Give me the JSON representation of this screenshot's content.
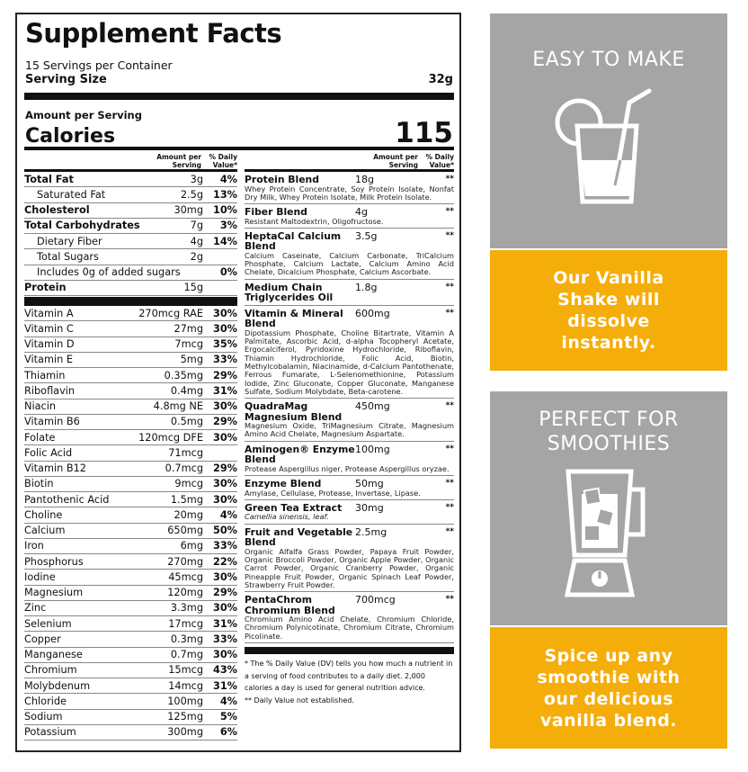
{
  "label": {
    "title": "Supplement Facts",
    "servings": "15 Servings per Container",
    "serving_size_label": "Serving Size",
    "serving_size": "32g",
    "amount_per_serving": "Amount per Serving",
    "calories_label": "Calories",
    "calories": "115",
    "col_amount": "Amount per Serving",
    "col_dv": "% Daily Value*",
    "macros": [
      {
        "name": "Total Fat",
        "amount": "3g",
        "dv": "4%",
        "style": "b"
      },
      {
        "name": "Saturated Fat",
        "amount": "2.5g",
        "dv": "13%",
        "style": "i1"
      },
      {
        "name": "Cholesterol",
        "amount": "30mg",
        "dv": "10%",
        "style": "b"
      },
      {
        "name": "Total Carbohydrates",
        "amount": "7g",
        "dv": "3%",
        "style": "b"
      },
      {
        "name": "Dietary Fiber",
        "amount": "4g",
        "dv": "14%",
        "style": "i1"
      },
      {
        "name": "Total Sugars",
        "amount": "2g",
        "dv": "",
        "style": "i1"
      },
      {
        "name": "Includes  0g of added sugars",
        "amount": "",
        "dv": "0%",
        "style": "i1"
      },
      {
        "name": "Protein",
        "amount": "15g",
        "dv": "",
        "style": "b"
      }
    ],
    "micros": [
      {
        "name": "Vitamin A",
        "amount": "270mcg RAE",
        "dv": "30%"
      },
      {
        "name": "Vitamin C",
        "amount": "27mg",
        "dv": "30%"
      },
      {
        "name": "Vitamin D",
        "amount": "7mcg",
        "dv": "35%"
      },
      {
        "name": "Vitamin E",
        "amount": "5mg",
        "dv": "33%"
      },
      {
        "name": "Thiamin",
        "amount": "0.35mg",
        "dv": "29%"
      },
      {
        "name": "Riboflavin",
        "amount": "0.4mg",
        "dv": "31%"
      },
      {
        "name": "Niacin",
        "amount": "4.8mg NE",
        "dv": "30%"
      },
      {
        "name": "Vitamin B6",
        "amount": "0.5mg",
        "dv": "29%"
      },
      {
        "name": "Folate",
        "amount": "120mcg DFE",
        "dv": "30%"
      },
      {
        "name": "Folic Acid",
        "amount": "71mcg",
        "dv": ""
      },
      {
        "name": "Vitamin B12",
        "amount": "0.7mcg",
        "dv": "29%"
      },
      {
        "name": "Biotin",
        "amount": "9mcg",
        "dv": "30%"
      },
      {
        "name": "Pantothenic Acid",
        "amount": "1.5mg",
        "dv": "30%"
      },
      {
        "name": "Choline",
        "amount": "20mg",
        "dv": "4%"
      },
      {
        "name": "Calcium",
        "amount": "650mg",
        "dv": "50%"
      },
      {
        "name": "Iron",
        "amount": "6mg",
        "dv": "33%"
      },
      {
        "name": "Phosphorus",
        "amount": "270mg",
        "dv": "22%"
      },
      {
        "name": "Iodine",
        "amount": "45mcg",
        "dv": "30%"
      },
      {
        "name": "Magnesium",
        "amount": "120mg",
        "dv": "29%"
      },
      {
        "name": "Zinc",
        "amount": "3.3mg",
        "dv": "30%"
      },
      {
        "name": "Selenium",
        "amount": "17mcg",
        "dv": "31%"
      },
      {
        "name": "Copper",
        "amount": "0.3mg",
        "dv": "33%"
      },
      {
        "name": "Manganese",
        "amount": "0.7mg",
        "dv": "30%"
      },
      {
        "name": "Chromium",
        "amount": "15mcg",
        "dv": "43%"
      },
      {
        "name": "Molybdenum",
        "amount": "14mcg",
        "dv": "31%"
      },
      {
        "name": "Chloride",
        "amount": "100mg",
        "dv": "4%"
      },
      {
        "name": "Sodium",
        "amount": "125mg",
        "dv": "5%"
      },
      {
        "name": "Potassium",
        "amount": "300mg",
        "dv": "6%"
      }
    ],
    "blends": [
      {
        "name": "Protein Blend",
        "amount": "18g",
        "dv": "**",
        "desc": "Whey Protein Concentrate, Soy Protein Isolate, Nonfat Dry Milk, Whey Protein Isolate, Milk Protein Isolate."
      },
      {
        "name": "Fiber Blend",
        "amount": "4g",
        "dv": "**",
        "desc": "Resistant Maltodextrin, Oligofructose."
      },
      {
        "name": "HeptaCal Calcium Blend",
        "amount": "3.5g",
        "dv": "**",
        "desc": "Calcium Caseinate, Calcium Carbonate, TriCalcium Phosphate, Calcium Lactate, Calcium Amino Acid Chelate, Dicalcium Phosphate, Calcium Ascorbate."
      },
      {
        "name": "Medium Chain Triglycerides Oil",
        "amount": "1.8g",
        "dv": "**",
        "desc": ""
      },
      {
        "name": "Vitamin & Mineral Blend",
        "amount": "600mg",
        "dv": "**",
        "desc": "Dipotassium Phosphate, Choline Bitartrate, Vitamin A Palmitate, Ascorbic Acid, d-alpha Tocopheryl Acetate, Ergocalciferol, Pyridoxine Hydrochloride, Riboflavin, Thiamin Hydrochloride, Folic Acid, Biotin, Methylcobalamin, Niacinamide, d-Calcium Pantothenate, Ferrous Fumarate, L-Selenomethionine, Potassium Iodide, Zinc Gluconate, Copper Gluconate, Manganese Sulfate, Sodium Molybdate, Beta-carotene."
      },
      {
        "name": "QuadraMag Magnesium Blend",
        "amount": "450mg",
        "dv": "**",
        "desc": "Magnesium Oxide, TriMagnesium Citrate, Magnesium Amino Acid Chelate, Magnesium Aspartate."
      },
      {
        "name": "Aminogen® Enzyme Blend",
        "amount": "100mg",
        "dv": "**",
        "desc": "Protease Aspergillus niger, Protease Aspergillus oryzae."
      },
      {
        "name": "Enzyme Blend",
        "amount": "50mg",
        "dv": "**",
        "desc": "Amylase, Cellulase, Protease, Invertase, Lipase."
      },
      {
        "name": "Green Tea Extract",
        "amount": "30mg",
        "dv": "**",
        "desc": "Camellia sinensis, leaf."
      },
      {
        "name": "Fruit and Vegetable Blend",
        "amount": "2.5mg",
        "dv": "**",
        "desc": "Organic Alfalfa Grass Powder, Papaya Fruit Powder, Organic Broccoli Powder, Organic Apple Powder, Organic Carrot Powder, Organic Cranberry Powder, Organic Pineapple Fruit Powder, Organic Spinach Leaf Powder, Strawberry Fruit Powder."
      },
      {
        "name": "PentaChrom Chromium Blend",
        "amount": "700mcg",
        "dv": "**",
        "desc": "Chromium Amino Acid Chelate, Chromium Chloride, Chromium Polynicotinate, Chromium Citrate, Chromium Picolinate."
      }
    ],
    "footnote_1": "* The % Daily Value (DV) tells you how much a nutrient in a serving of food contributes to a daily diet. 2,000 calories a day is used for general nutrition advice.",
    "footnote_2": "** Daily Value not established."
  },
  "panels": [
    {
      "title": "EASY TO MAKE",
      "icon": "drink-glass-icon",
      "text": "Our Vanilla Shake will dissolve instantly."
    },
    {
      "title": "PERFECT FOR SMOOTHIES",
      "icon": "blender-icon",
      "text": "Spice up any smoothie with our delicious vanilla blend."
    }
  ],
  "colors": {
    "gray": "#a5a5a5",
    "orange": "#f5ad0a"
  }
}
